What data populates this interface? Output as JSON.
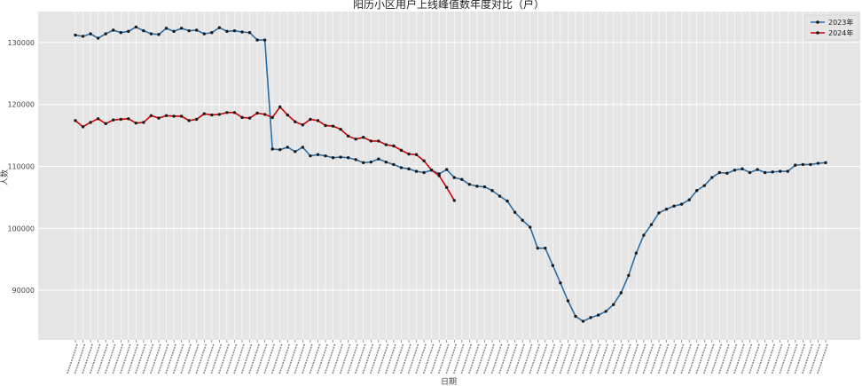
{
  "chart_data": {
    "type": "line",
    "title": "阳历小区用户上线峰值数年度对比（户）",
    "xlabel": "日期",
    "ylabel": "人数",
    "ylim": [
      82000,
      135000
    ],
    "yticks": [
      90000,
      100000,
      110000,
      120000,
      130000
    ],
    "grid": true,
    "legend_position": "top-right",
    "x_tick_labels_hidden_count": 97,
    "series": [
      {
        "name": "2023年",
        "color": "#2b6ea6",
        "values": [
          131200,
          131000,
          131400,
          130700,
          131400,
          132000,
          131600,
          131800,
          132500,
          131900,
          131400,
          131300,
          132300,
          131800,
          132300,
          131900,
          132000,
          131400,
          131600,
          132400,
          131800,
          131900,
          131700,
          131600,
          130400,
          130400,
          112800,
          112700,
          113100,
          112400,
          113100,
          111700,
          111900,
          111700,
          111400,
          111500,
          111400,
          111100,
          110600,
          110700,
          111200,
          110700,
          110300,
          109800,
          109600,
          109200,
          109000,
          109400,
          108800,
          109500,
          108200,
          107900,
          107100,
          106800,
          106700,
          106100,
          105200,
          104400,
          102600,
          101300,
          100200,
          96800,
          96800,
          94000,
          91200,
          88300,
          85800,
          85000,
          85600,
          86000,
          86600,
          87700,
          89600,
          92400,
          96000,
          98900,
          100600,
          102500,
          103100,
          103600,
          103900,
          104600,
          106100,
          106900,
          108200,
          109000,
          108900,
          109400,
          109600,
          109000,
          109500,
          109000,
          109100,
          109200,
          109200,
          110200,
          110300,
          110300,
          110500,
          110600
        ]
      },
      {
        "name": "2024年",
        "color": "#cc0000",
        "values": [
          117400,
          116400,
          117100,
          117700,
          116900,
          117500,
          117600,
          117700,
          117000,
          117100,
          118200,
          117800,
          118200,
          118100,
          118100,
          117400,
          117600,
          118500,
          118300,
          118400,
          118700,
          118700,
          117900,
          117800,
          118600,
          118400,
          117900,
          119600,
          118300,
          117200,
          116700,
          117600,
          117400,
          116600,
          116500,
          116000,
          114900,
          114400,
          114700,
          114100,
          114100,
          113500,
          113300,
          112600,
          112000,
          111900,
          110900,
          109400,
          108500,
          106600,
          104500
        ]
      }
    ]
  }
}
